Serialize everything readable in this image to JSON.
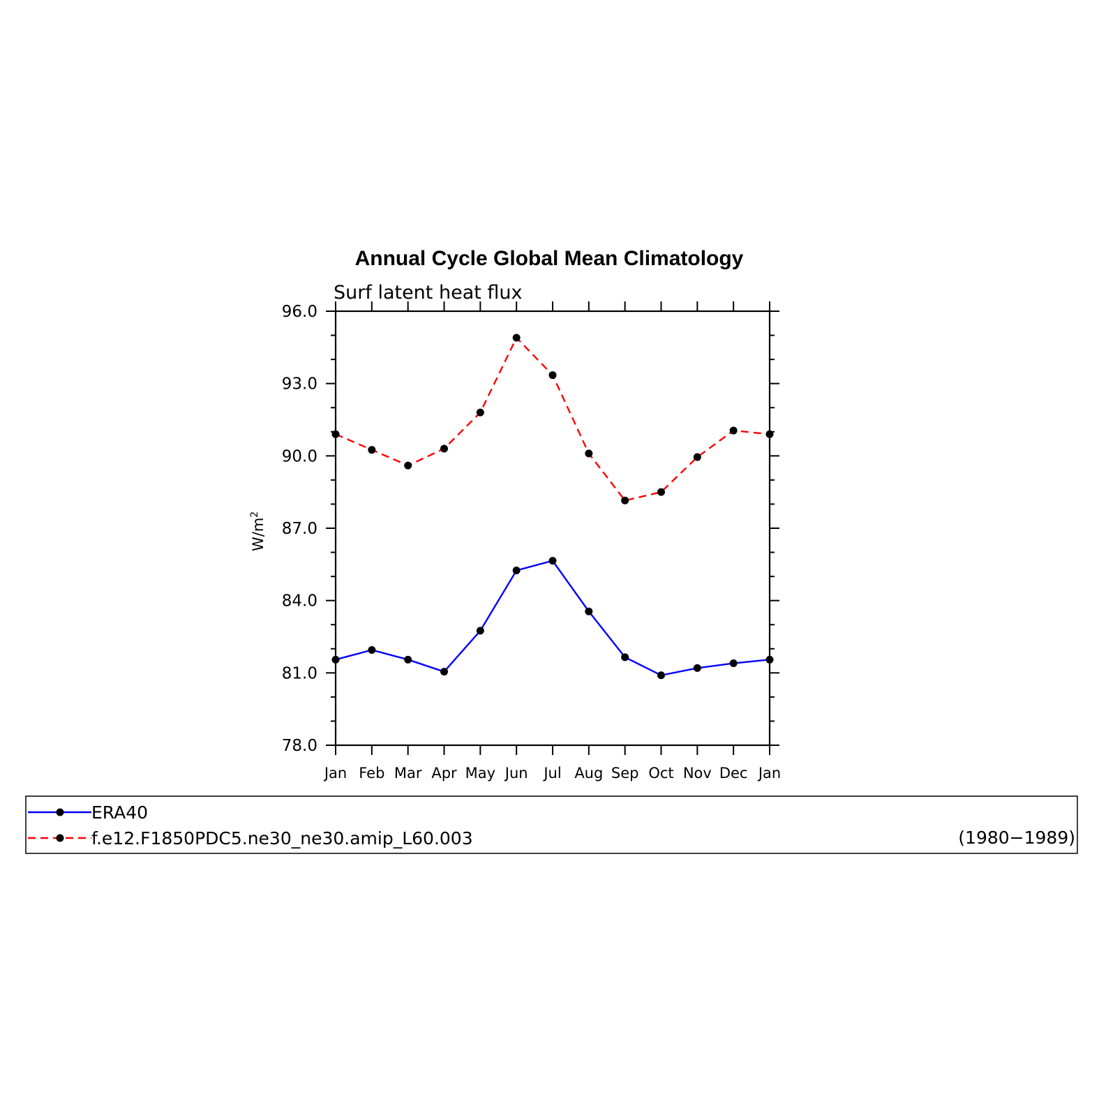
{
  "chart_data": {
    "type": "line",
    "title": "Annual Cycle Global Mean Climatology",
    "subtitle": "Surf latent heat flux",
    "ylabel": "W/m",
    "ylabel_sup": "2",
    "xlabel": "",
    "categories": [
      "Jan",
      "Feb",
      "Mar",
      "Apr",
      "May",
      "Jun",
      "Jul",
      "Aug",
      "Sep",
      "Oct",
      "Nov",
      "Dec",
      "Jan"
    ],
    "ylim": [
      78.0,
      96.0
    ],
    "yticks": [
      "78.0",
      "81.0",
      "84.0",
      "87.0",
      "90.0",
      "93.0",
      "96.0"
    ],
    "grid": false,
    "legend_position": "bottom",
    "series": [
      {
        "name": "ERA40",
        "color": "#0000ff",
        "dash": "solid",
        "marker": "dot",
        "values": [
          81.55,
          81.95,
          81.55,
          81.05,
          82.75,
          85.25,
          85.65,
          83.55,
          81.65,
          80.9,
          81.2,
          81.4,
          81.55
        ]
      },
      {
        "name": "f.e12.F1850PDC5.ne30_ne30.amip_L60.003",
        "color": "#ff0000",
        "dash": "dashed",
        "marker": "dot",
        "values": [
          90.9,
          90.25,
          89.6,
          90.3,
          91.8,
          94.9,
          93.35,
          90.1,
          88.15,
          88.5,
          89.95,
          91.05,
          90.9
        ]
      }
    ],
    "legend_note": "(1980−1989)"
  }
}
